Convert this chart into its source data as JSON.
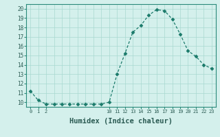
{
  "title": "",
  "xlabel": "Humidex (Indice chaleur)",
  "ylabel": "",
  "hours": [
    0,
    1,
    2,
    3,
    4,
    5,
    6,
    7,
    8,
    9,
    10,
    11,
    12,
    13,
    14,
    15,
    16,
    17,
    18,
    19,
    20,
    21,
    22,
    23
  ],
  "values": [
    11.2,
    10.2,
    9.8,
    9.8,
    9.8,
    9.8,
    9.8,
    9.8,
    9.8,
    9.8,
    10.0,
    13.0,
    15.2,
    17.5,
    18.2,
    19.3,
    19.9,
    19.8,
    18.9,
    17.3,
    15.5,
    14.9,
    14.0,
    13.6
  ],
  "ylim": [
    9.5,
    20.5
  ],
  "yticks": [
    10,
    11,
    12,
    13,
    14,
    15,
    16,
    17,
    18,
    19,
    20
  ],
  "xticks_show": [
    0,
    1,
    2,
    10,
    11,
    12,
    13,
    14,
    15,
    16,
    17,
    18,
    19,
    20,
    21,
    22,
    23
  ],
  "line_color": "#1a7a6a",
  "marker": "D",
  "marker_size": 2.5,
  "bg_color": "#d4f0ec",
  "grid_color": "#a8d8d0",
  "axis_color": "#2a8a7a",
  "tick_color": "#2a5a52",
  "xlabel_fontsize": 7.5,
  "xlabel_fontweight": "bold"
}
